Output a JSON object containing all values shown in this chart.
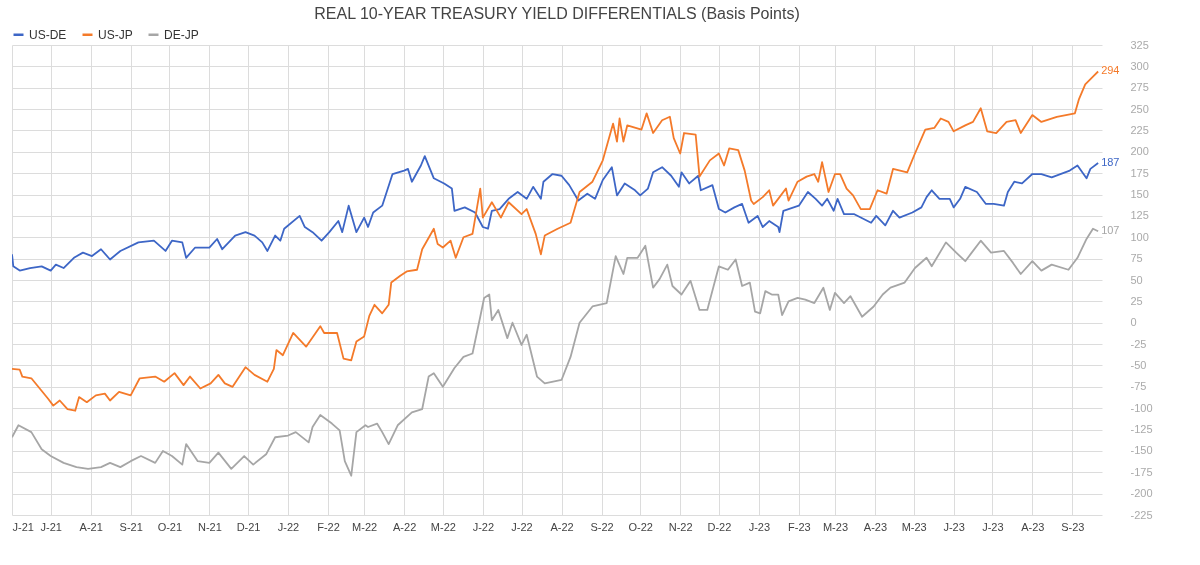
{
  "chart_data": {
    "type": "line",
    "title": "REAL 10-YEAR TREASURY YIELD DIFFERENTIALS (Basis Points)",
    "legend": "top",
    "grid": true,
    "xlim": [
      "2021-06-01",
      "2023-09-24"
    ],
    "xticks": [
      {
        "value": "2021-06-01",
        "label": "J-21"
      },
      {
        "value": "2021-07-01",
        "label": "J-21"
      },
      {
        "value": "2021-08-01",
        "label": "A-21"
      },
      {
        "value": "2021-09-01",
        "label": "S-21"
      },
      {
        "value": "2021-10-01",
        "label": "O-21"
      },
      {
        "value": "2021-11-01",
        "label": "N-21"
      },
      {
        "value": "2021-12-01",
        "label": "D-21"
      },
      {
        "value": "2022-01-01",
        "label": "J-22"
      },
      {
        "value": "2022-02-01",
        "label": "F-22"
      },
      {
        "value": "2022-03-01",
        "label": "M-22"
      },
      {
        "value": "2022-04-01",
        "label": "A-22"
      },
      {
        "value": "2022-05-01",
        "label": "M-22"
      },
      {
        "value": "2022-06-01",
        "label": "J-22"
      },
      {
        "value": "2022-07-01",
        "label": "J-22"
      },
      {
        "value": "2022-08-01",
        "label": "A-22"
      },
      {
        "value": "2022-09-01",
        "label": "S-22"
      },
      {
        "value": "2022-10-01",
        "label": "O-22"
      },
      {
        "value": "2022-11-01",
        "label": "N-22"
      },
      {
        "value": "2022-12-01",
        "label": "D-22"
      },
      {
        "value": "2023-01-01",
        "label": "J-23"
      },
      {
        "value": "2023-02-01",
        "label": "F-23"
      },
      {
        "value": "2023-03-01",
        "label": "M-23"
      },
      {
        "value": "2023-04-01",
        "label": "A-23"
      },
      {
        "value": "2023-05-01",
        "label": "M-23"
      },
      {
        "value": "2023-06-01",
        "label": "J-23"
      },
      {
        "value": "2023-07-01",
        "label": "J-23"
      },
      {
        "value": "2023-08-01",
        "label": "A-23"
      },
      {
        "value": "2023-09-01",
        "label": "S-23"
      }
    ],
    "ylim": [
      -225,
      325
    ],
    "yticks": [
      -225,
      -200,
      -175,
      -150,
      -125,
      -100,
      -75,
      -50,
      -25,
      0,
      25,
      50,
      75,
      100,
      125,
      150,
      175,
      200,
      225,
      250,
      275,
      300,
      325
    ],
    "series": [
      {
        "name": "US-DE",
        "color": "#3d66c6",
        "x": [
          "2021-06-01",
          "2021-06-02",
          "2021-06-07",
          "2021-06-15",
          "2021-06-24",
          "2021-07-01",
          "2021-07-05",
          "2021-07-11",
          "2021-07-19",
          "2021-07-26",
          "2021-08-02",
          "2021-08-09",
          "2021-08-16",
          "2021-08-24",
          "2021-09-07",
          "2021-09-19",
          "2021-09-28",
          "2021-10-03",
          "2021-10-11",
          "2021-10-14",
          "2021-10-21",
          "2021-11-01",
          "2021-11-07",
          "2021-11-11",
          "2021-11-21",
          "2021-11-29",
          "2021-12-06",
          "2021-12-12",
          "2021-12-16",
          "2021-12-22",
          "2021-12-26",
          "2021-12-29",
          "2022-01-10",
          "2022-01-14",
          "2022-01-20",
          "2022-01-27",
          "2022-02-02",
          "2022-02-09",
          "2022-02-12",
          "2022-02-17",
          "2022-02-23",
          "2022-03-01",
          "2022-03-04",
          "2022-03-08",
          "2022-03-15",
          "2022-03-23",
          "2022-04-01",
          "2022-04-04",
          "2022-04-07",
          "2022-04-14",
          "2022-04-17",
          "2022-04-24",
          "2022-05-02",
          "2022-05-08",
          "2022-05-10",
          "2022-05-18",
          "2022-05-26",
          "2022-06-01",
          "2022-06-05",
          "2022-06-08",
          "2022-06-14",
          "2022-06-21",
          "2022-06-28",
          "2022-07-05",
          "2022-07-10",
          "2022-07-16",
          "2022-07-18",
          "2022-07-25",
          "2022-08-01",
          "2022-08-07",
          "2022-08-14",
          "2022-08-21",
          "2022-08-27",
          "2022-09-02",
          "2022-09-09",
          "2022-09-13",
          "2022-09-19",
          "2022-09-27",
          "2022-10-01",
          "2022-10-07",
          "2022-10-11",
          "2022-10-18",
          "2022-10-25",
          "2022-10-31",
          "2022-11-02",
          "2022-11-08",
          "2022-11-15",
          "2022-11-17",
          "2022-11-26",
          "2022-12-01",
          "2022-12-06",
          "2022-12-13",
          "2022-12-19",
          "2022-12-24",
          "2022-12-31",
          "2023-01-04",
          "2023-01-09",
          "2023-01-16",
          "2023-01-17",
          "2023-01-20",
          "2023-01-24",
          "2023-02-01",
          "2023-02-08",
          "2023-02-14",
          "2023-02-19",
          "2023-02-23",
          "2023-02-28",
          "2023-03-03",
          "2023-03-08",
          "2023-03-16",
          "2023-03-29",
          "2023-04-02",
          "2023-04-09",
          "2023-04-15",
          "2023-04-20",
          "2023-04-30",
          "2023-05-07",
          "2023-05-11",
          "2023-05-15",
          "2023-05-21",
          "2023-05-29",
          "2023-06-01",
          "2023-06-06",
          "2023-06-10",
          "2023-06-19",
          "2023-06-26",
          "2023-07-02",
          "2023-07-10",
          "2023-07-13",
          "2023-07-18",
          "2023-07-24",
          "2023-08-01",
          "2023-08-08",
          "2023-08-16",
          "2023-08-30",
          "2023-09-05",
          "2023-09-12",
          "2023-09-15",
          "2023-09-21"
        ],
        "values": [
          80,
          66,
          61,
          64,
          66,
          61,
          68,
          64,
          76,
          82,
          78,
          86,
          74,
          84,
          94,
          96,
          84,
          96,
          94,
          76,
          88,
          88,
          98,
          86,
          102,
          106,
          102,
          94,
          84,
          102,
          96,
          110,
          125,
          112,
          106,
          96,
          106,
          119,
          106,
          137,
          106,
          123,
          112,
          129,
          137,
          174,
          178,
          180,
          165,
          184,
          195,
          169,
          163,
          157,
          131,
          135,
          129,
          112,
          110,
          131,
          133,
          145,
          153,
          145,
          159,
          145,
          165,
          174,
          172,
          161,
          143,
          151,
          145,
          167,
          182,
          149,
          163,
          155,
          149,
          157,
          176,
          182,
          172,
          159,
          176,
          163,
          172,
          155,
          161,
          133,
          129,
          135,
          139,
          117,
          125,
          112,
          119,
          112,
          106,
          131,
          133,
          137,
          153,
          145,
          137,
          145,
          131,
          145,
          127,
          127,
          117,
          125,
          114,
          131,
          123,
          129,
          135,
          147,
          155,
          145,
          145,
          135,
          145,
          159,
          153,
          139,
          139,
          137,
          153,
          165,
          163,
          174,
          174,
          170,
          178,
          184,
          169,
          180,
          187
        ]
      },
      {
        "name": "US-JP",
        "color": "#f47a2a",
        "x": [
          "2021-06-01",
          "2021-06-07",
          "2021-06-09",
          "2021-06-16",
          "2021-06-29",
          "2021-07-03",
          "2021-07-08",
          "2021-07-14",
          "2021-07-20",
          "2021-07-23",
          "2021-07-29",
          "2021-08-05",
          "2021-08-12",
          "2021-08-16",
          "2021-08-23",
          "2021-09-01",
          "2021-09-08",
          "2021-09-20",
          "2021-09-27",
          "2021-10-05",
          "2021-10-12",
          "2021-10-17",
          "2021-10-25",
          "2021-11-02",
          "2021-11-08",
          "2021-11-13",
          "2021-11-19",
          "2021-11-29",
          "2021-12-06",
          "2021-12-16",
          "2021-12-21",
          "2021-12-23",
          "2021-12-28",
          "2022-01-05",
          "2022-01-15",
          "2022-01-26",
          "2022-01-29",
          "2022-02-08",
          "2022-02-13",
          "2022-02-19",
          "2022-02-23",
          "2022-03-01",
          "2022-03-05",
          "2022-03-09",
          "2022-03-15",
          "2022-03-20",
          "2022-03-22",
          "2022-03-29",
          "2022-04-03",
          "2022-04-11",
          "2022-04-15",
          "2022-04-24",
          "2022-04-27",
          "2022-05-01",
          "2022-05-07",
          "2022-05-11",
          "2022-05-17",
          "2022-05-24",
          "2022-05-30",
          "2022-06-01",
          "2022-06-08",
          "2022-06-15",
          "2022-06-21",
          "2022-07-01",
          "2022-07-05",
          "2022-07-12",
          "2022-07-16",
          "2022-07-19",
          "2022-07-29",
          "2022-08-08",
          "2022-08-15",
          "2022-08-25",
          "2022-09-02",
          "2022-09-10",
          "2022-09-13",
          "2022-09-15",
          "2022-09-18",
          "2022-09-21",
          "2022-10-02",
          "2022-10-06",
          "2022-10-11",
          "2022-10-18",
          "2022-10-24",
          "2022-10-27",
          "2022-11-01",
          "2022-11-04",
          "2022-11-13",
          "2022-11-16",
          "2022-11-24",
          "2022-12-01",
          "2022-12-05",
          "2022-12-09",
          "2022-12-16",
          "2022-12-21",
          "2022-12-26",
          "2022-12-28",
          "2023-01-04",
          "2023-01-09",
          "2023-01-12",
          "2023-01-17",
          "2023-01-22",
          "2023-01-24",
          "2023-01-31",
          "2023-02-07",
          "2023-02-13",
          "2023-02-16",
          "2023-02-19",
          "2023-02-24",
          "2023-03-01",
          "2023-03-05",
          "2023-03-10",
          "2023-03-15",
          "2023-03-21",
          "2023-03-28",
          "2023-04-03",
          "2023-04-10",
          "2023-04-15",
          "2023-04-26",
          "2023-05-02",
          "2023-05-10",
          "2023-05-17",
          "2023-05-22",
          "2023-05-28",
          "2023-06-01",
          "2023-06-10",
          "2023-06-16",
          "2023-06-22",
          "2023-06-27",
          "2023-07-04",
          "2023-07-12",
          "2023-07-19",
          "2023-07-23",
          "2023-08-01",
          "2023-08-08",
          "2023-08-20",
          "2023-09-03",
          "2023-09-06",
          "2023-09-11",
          "2023-09-17",
          "2023-09-21"
        ],
        "values": [
          -54,
          -55,
          -63,
          -65,
          -89,
          -97,
          -91,
          -101,
          -103,
          -87,
          -93,
          -85,
          -83,
          -91,
          -81,
          -85,
          -65,
          -63,
          -69,
          -59,
          -73,
          -63,
          -77,
          -71,
          -61,
          -71,
          -75,
          -52,
          -61,
          -69,
          -54,
          -32,
          -38,
          -12,
          -28,
          -4,
          -12,
          -12,
          -42,
          -44,
          -22,
          -16,
          8,
          21,
          11,
          21,
          47,
          55,
          60,
          62,
          86,
          110,
          92,
          88,
          96,
          76,
          100,
          104,
          157,
          123,
          141,
          123,
          141,
          127,
          133,
          104,
          80,
          102,
          110,
          117,
          153,
          165,
          190,
          233,
          212,
          239,
          212,
          231,
          226,
          245,
          222,
          237,
          241,
          216,
          198,
          222,
          220,
          171,
          190,
          198,
          184,
          204,
          202,
          178,
          143,
          139,
          147,
          155,
          137,
          147,
          157,
          143,
          165,
          171,
          174,
          165,
          188,
          153,
          174,
          174,
          157,
          149,
          133,
          133,
          155,
          151,
          180,
          176,
          198,
          226,
          228,
          239,
          235,
          224,
          231,
          235,
          251,
          224,
          222,
          235,
          237,
          222,
          243,
          235,
          241,
          245,
          261,
          279,
          288,
          294
        ]
      },
      {
        "name": "DE-JP",
        "color": "#a6a6a6",
        "x": [
          "2021-06-01",
          "2021-06-06",
          "2021-06-16",
          "2021-06-24",
          "2021-07-01",
          "2021-07-11",
          "2021-07-21",
          "2021-07-30",
          "2021-08-09",
          "2021-08-16",
          "2021-08-24",
          "2021-09-01",
          "2021-09-09",
          "2021-09-20",
          "2021-09-26",
          "2021-10-03",
          "2021-10-11",
          "2021-10-14",
          "2021-10-23",
          "2021-11-01",
          "2021-11-08",
          "2021-11-18",
          "2021-11-28",
          "2021-12-05",
          "2021-12-15",
          "2021-12-22",
          "2022-01-01",
          "2022-01-07",
          "2022-01-17",
          "2022-01-20",
          "2022-01-26",
          "2022-02-04",
          "2022-02-10",
          "2022-02-14",
          "2022-02-19",
          "2022-02-23",
          "2022-03-02",
          "2022-03-04",
          "2022-03-11",
          "2022-03-15",
          "2022-03-20",
          "2022-03-27",
          "2022-04-07",
          "2022-04-15",
          "2022-04-20",
          "2022-04-24",
          "2022-05-01",
          "2022-05-10",
          "2022-05-17",
          "2022-05-24",
          "2022-05-30",
          "2022-06-02",
          "2022-06-06",
          "2022-06-08",
          "2022-06-13",
          "2022-06-20",
          "2022-06-24",
          "2022-07-01",
          "2022-07-05",
          "2022-07-13",
          "2022-07-19",
          "2022-08-01",
          "2022-08-08",
          "2022-08-15",
          "2022-08-25",
          "2022-09-05",
          "2022-09-12",
          "2022-09-18",
          "2022-09-21",
          "2022-09-29",
          "2022-10-05",
          "2022-10-11",
          "2022-10-16",
          "2022-10-22",
          "2022-10-26",
          "2022-11-02",
          "2022-11-09",
          "2022-11-16",
          "2022-11-22",
          "2022-12-01",
          "2022-12-08",
          "2022-12-14",
          "2022-12-19",
          "2022-12-25",
          "2022-12-29",
          "2023-01-02",
          "2023-01-06",
          "2023-01-11",
          "2023-01-16",
          "2023-01-19",
          "2023-01-24",
          "2023-01-31",
          "2023-02-06",
          "2023-02-13",
          "2023-02-20",
          "2023-02-25",
          "2023-03-01",
          "2023-03-08",
          "2023-03-13",
          "2023-03-22",
          "2023-03-31",
          "2023-04-07",
          "2023-04-13",
          "2023-04-24",
          "2023-05-02",
          "2023-05-11",
          "2023-05-15",
          "2023-05-26",
          "2023-06-03",
          "2023-06-10",
          "2023-06-15",
          "2023-06-22",
          "2023-06-30",
          "2023-07-10",
          "2023-07-17",
          "2023-07-23",
          "2023-08-01",
          "2023-08-08",
          "2023-08-16",
          "2023-08-29",
          "2023-09-05",
          "2023-09-12",
          "2023-09-17",
          "2023-09-21"
        ],
        "values": [
          -134,
          -120,
          -128,
          -148,
          -156,
          -164,
          -169,
          -171,
          -169,
          -164,
          -169,
          -162,
          -156,
          -164,
          -150,
          -156,
          -166,
          -142,
          -162,
          -164,
          -152,
          -171,
          -156,
          -166,
          -154,
          -134,
          -132,
          -128,
          -140,
          -122,
          -108,
          -118,
          -126,
          -162,
          -179,
          -128,
          -120,
          -122,
          -118,
          -128,
          -142,
          -120,
          -105,
          -101,
          -63,
          -59,
          -75,
          -53,
          -40,
          -36,
          7,
          29,
          33,
          3,
          15,
          -18,
          0,
          -26,
          -14,
          -63,
          -71,
          -67,
          -40,
          0,
          19,
          23,
          78,
          57,
          76,
          76,
          90,
          41,
          51,
          68,
          43,
          33,
          49,
          15,
          15,
          66,
          62,
          74,
          43,
          47,
          13,
          11,
          37,
          33,
          33,
          9,
          25,
          29,
          27,
          23,
          41,
          15,
          35,
          23,
          31,
          7,
          19,
          33,
          41,
          47,
          64,
          76,
          66,
          94,
          82,
          72,
          82,
          96,
          82,
          84,
          70,
          57,
          72,
          61,
          68,
          62,
          76,
          98,
          110,
          107
        ]
      }
    ],
    "annotations": [
      {
        "text": "294",
        "x": "2023-09-21",
        "y": 294
      },
      {
        "text": "187",
        "x": "2023-09-21",
        "y": 187
      },
      {
        "text": "107",
        "x": "2023-09-21",
        "y": 107
      }
    ]
  }
}
